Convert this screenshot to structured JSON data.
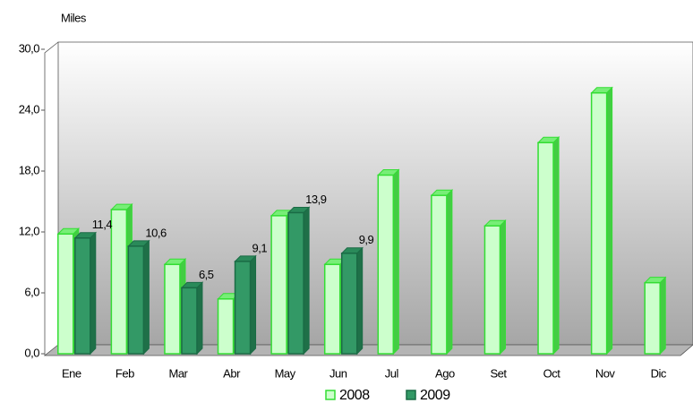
{
  "chart_data": {
    "type": "bar",
    "y_label": "Miles",
    "categories": [
      "Ene",
      "Feb",
      "Mar",
      "Abr",
      "May",
      "Jun",
      "Jul",
      "Ago",
      "Set",
      "Oct",
      "Nov",
      "Dic"
    ],
    "series": [
      {
        "name": "2008",
        "color": "#ccffcc",
        "values": [
          11.8,
          14.2,
          8.8,
          5.4,
          13.6,
          8.8,
          17.6,
          15.6,
          12.6,
          20.8,
          25.7,
          7.0
        ]
      },
      {
        "name": "2009",
        "color": "#339966",
        "values": [
          11.4,
          10.6,
          6.5,
          9.1,
          13.9,
          9.9,
          null,
          null,
          null,
          null,
          null,
          null
        ],
        "value_labels": [
          "11,4",
          "10,6",
          "6,5",
          "9,1",
          "13,9",
          "9,9",
          null,
          null,
          null,
          null,
          null,
          null
        ]
      }
    ],
    "ylim": [
      0,
      30
    ],
    "yticks": [
      {
        "value": 0,
        "label": "0,0"
      },
      {
        "value": 6,
        "label": "6,0"
      },
      {
        "value": 12,
        "label": "12,0"
      },
      {
        "value": 18,
        "label": "18,0"
      },
      {
        "value": 24,
        "label": "24,0"
      },
      {
        "value": 30,
        "label": "30,0"
      }
    ]
  }
}
